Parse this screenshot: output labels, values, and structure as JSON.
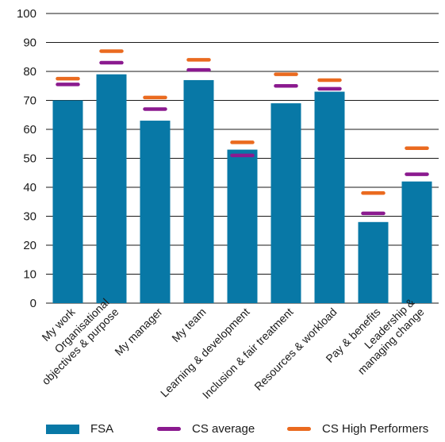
{
  "chart_data": {
    "type": "bar",
    "categories": [
      "My work",
      "Organisational objectives & purpose",
      "My manager",
      "My team",
      "Learning & development",
      "Inclusion & fair treatment",
      "Resources & workload",
      "Pay & benefits",
      "Leadership & managing change"
    ],
    "category_label_lines": [
      [
        "My work"
      ],
      [
        "Organisational",
        "objectives & purpose"
      ],
      [
        "My manager"
      ],
      [
        "My team"
      ],
      [
        "Learning & development"
      ],
      [
        "Inclusion & fair treatment"
      ],
      [
        "Resources & workload"
      ],
      [
        "Pay & benefits"
      ],
      [
        "Leadership &",
        "managing change"
      ]
    ],
    "series": [
      {
        "name": "FSA",
        "kind": "bar",
        "color": "#0878a6",
        "values": [
          70,
          79,
          63,
          77,
          53,
          69,
          73,
          28,
          42
        ]
      },
      {
        "name": "CS average",
        "kind": "marker",
        "color": "#8b1a8f",
        "values": [
          75.5,
          83,
          67,
          80.5,
          51,
          75,
          74,
          31,
          44.5
        ]
      },
      {
        "name": "CS High Performers",
        "kind": "marker",
        "color": "#ea6a1f",
        "values": [
          77.5,
          87,
          71,
          84,
          55.5,
          79,
          77,
          38,
          53.5
        ]
      }
    ],
    "yticks": [
      0,
      10,
      20,
      30,
      40,
      50,
      60,
      70,
      80,
      90,
      100
    ],
    "ylim": [
      0,
      100
    ],
    "grid": true,
    "legend_position": "bottom",
    "title": "",
    "xlabel": "",
    "ylabel": ""
  }
}
